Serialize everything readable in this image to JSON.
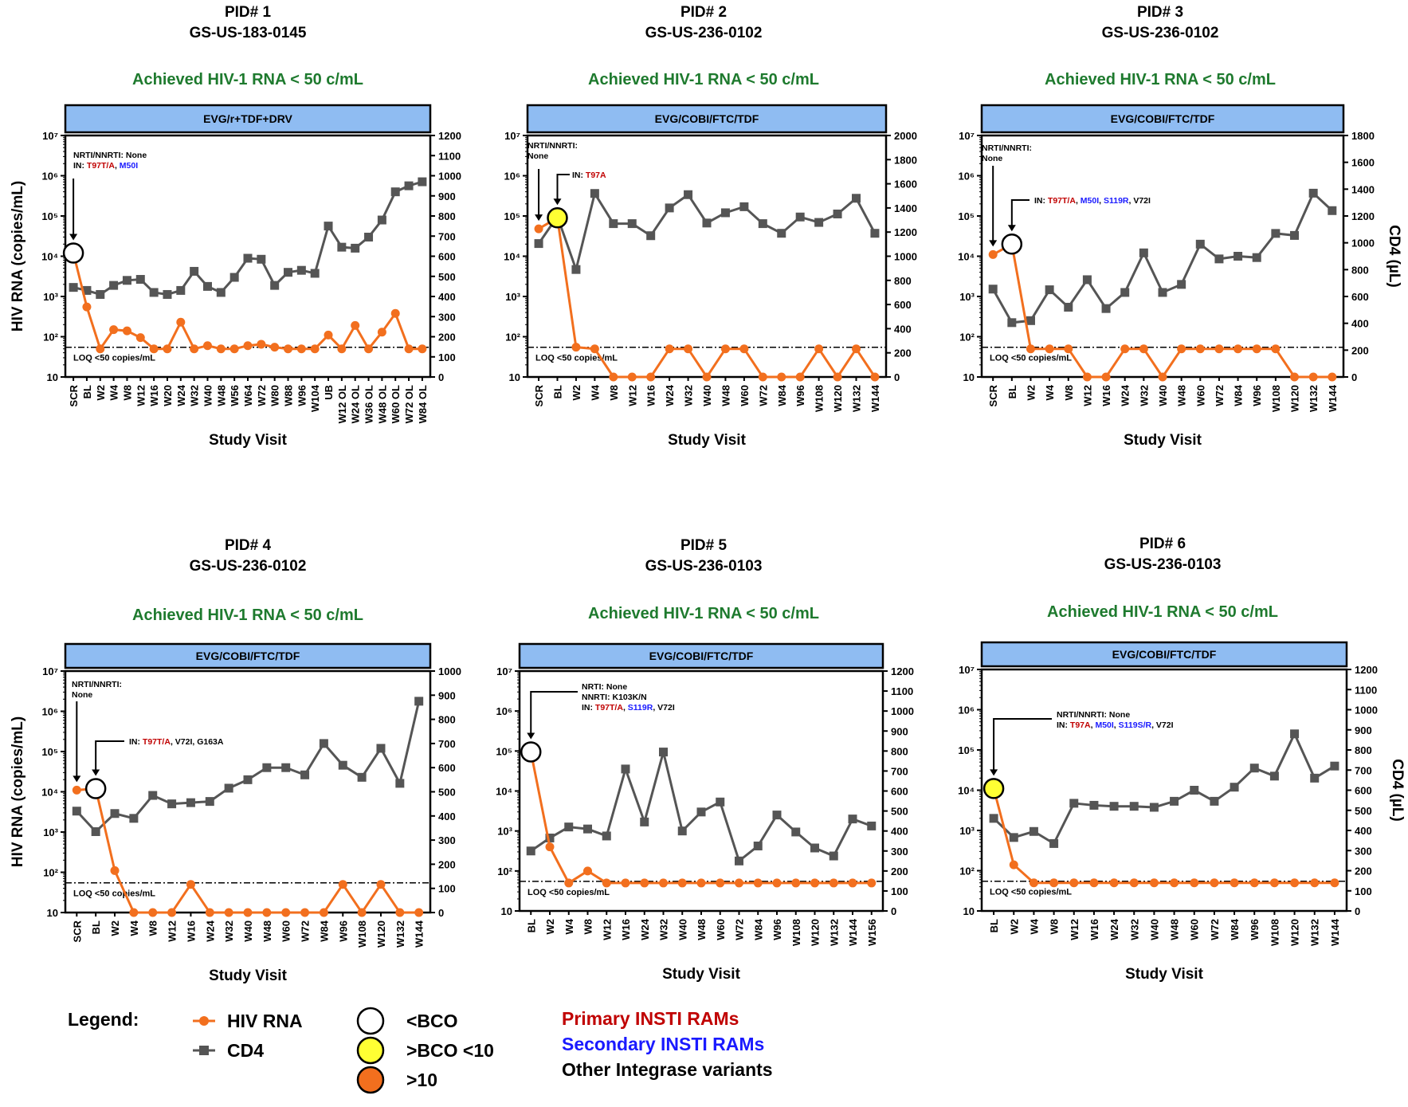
{
  "colors": {
    "hiv_rna": "#f26f1e",
    "cd4": "#555555",
    "achieved": "#1e7a2e",
    "header_fill": "#8fbcf2",
    "primary_ram": "#c00000",
    "secondary_ram": "#1a1aff",
    "other_variant": "#000000",
    "bco_low": "#ffffff",
    "bco_mid": "#ffff33",
    "bco_high": "#f26f1e"
  },
  "chart_data": [
    {
      "type": "line",
      "pid": "PID# 1",
      "study": "GS-US-183-0145",
      "status": "Achieved HIV-1 RNA < 50 c/mL",
      "regimen": "EVG/r+TDF+DRV",
      "ylabel_left": "HIV RNA (copies/mL)",
      "ylabel_right": "",
      "xlabel": "Study Visit",
      "loq_label": "LOQ <50 copies/mL",
      "yscale_left": "log",
      "ylim_left": [
        10,
        10000000
      ],
      "y_ticks_left": [
        "10",
        "10²",
        "10³",
        "10⁴",
        "10⁵",
        "10⁶",
        "10⁷"
      ],
      "ylim_right": [
        0,
        1200
      ],
      "y_ticks_right": [
        0,
        100,
        200,
        300,
        400,
        500,
        600,
        700,
        800,
        900,
        1000,
        1100,
        1200
      ],
      "categories": [
        "SCR",
        "BL",
        "W2",
        "W4",
        "W8",
        "W12",
        "W16",
        "W20",
        "W24",
        "W32",
        "W40",
        "W48",
        "W56",
        "W64",
        "W72",
        "W80",
        "W88",
        "W96",
        "W104",
        "UB",
        "W12 OL",
        "W24 OL",
        "W36 OL",
        "W48 OL",
        "W60 OL",
        "W72 OL",
        "W84 OL"
      ],
      "series": [
        {
          "name": "HIV RNA",
          "values": [
            12000,
            550,
            50,
            150,
            140,
            95,
            50,
            50,
            230,
            50,
            60,
            50,
            50,
            60,
            65,
            55,
            50,
            50,
            50,
            110,
            50,
            190,
            50,
            130,
            380,
            50,
            50
          ]
        },
        {
          "name": "CD4",
          "values": [
            445,
            430,
            410,
            455,
            480,
            485,
            420,
            410,
            430,
            525,
            450,
            420,
            495,
            590,
            585,
            455,
            520,
            530,
            515,
            750,
            645,
            640,
            695,
            780,
            920,
            950,
            970
          ]
        }
      ],
      "annotations": [
        {
          "category": "SCR",
          "marker": "<BCO",
          "value": 12000,
          "segments": [
            [
              {
                "text": "NRTI/NNRTI: None",
                "kind": "other"
              }
            ],
            [
              {
                "text": "IN: ",
                "kind": "other"
              },
              {
                "text": "T97T/A",
                "kind": "primary"
              },
              {
                "text": ", ",
                "kind": "other"
              },
              {
                "text": "M50I",
                "kind": "secondary"
              }
            ]
          ]
        }
      ]
    },
    {
      "type": "line",
      "pid": "PID# 2",
      "study": "GS-US-236-0102",
      "status": "Achieved HIV-1 RNA < 50 c/mL",
      "regimen": "EVG/COBI/FTC/TDF",
      "ylabel_left": "",
      "ylabel_right": "",
      "xlabel": "Study Visit",
      "loq_label": "LOQ <50 copies/mL",
      "yscale_left": "log",
      "ylim_left": [
        10,
        10000000
      ],
      "y_ticks_left": [
        "10",
        "10²",
        "10³",
        "10⁴",
        "10⁵",
        "10⁶",
        "10⁷"
      ],
      "ylim_right": [
        0,
        2000
      ],
      "y_ticks_right": [
        0,
        200,
        400,
        600,
        800,
        1000,
        1200,
        1400,
        1600,
        1800,
        2000
      ],
      "categories": [
        "SCR",
        "BL",
        "W2",
        "W4",
        "W8",
        "W12",
        "W16",
        "W24",
        "W32",
        "W40",
        "W48",
        "W60",
        "W72",
        "W84",
        "W96",
        "W108",
        "W120",
        "W132",
        "W144"
      ],
      "series": [
        {
          "name": "HIV RNA",
          "values": [
            48000,
            90000,
            55,
            50,
            10,
            10,
            10,
            50,
            50,
            10,
            50,
            50,
            10,
            10,
            10,
            50,
            10,
            50,
            10
          ]
        },
        {
          "name": "CD4",
          "values": [
            1105,
            1330,
            890,
            1520,
            1270,
            1270,
            1170,
            1400,
            1510,
            1275,
            1360,
            1410,
            1270,
            1190,
            1325,
            1280,
            1350,
            1480,
            1190
          ]
        }
      ],
      "annotations": [
        {
          "category": "SCR",
          "marker": "",
          "value": 48000,
          "segments": [
            [
              {
                "text": "NRTI/NNRTI:",
                "kind": "other"
              }
            ],
            [
              {
                "text": "None",
                "kind": "other"
              }
            ]
          ]
        },
        {
          "category": "BL",
          "marker": ">BCO <10",
          "value": 90000,
          "segments": [
            [
              {
                "text": "IN: ",
                "kind": "other"
              },
              {
                "text": "T97A",
                "kind": "primary"
              }
            ]
          ]
        }
      ]
    },
    {
      "type": "line",
      "pid": "PID# 3",
      "study": "GS-US-236-0102",
      "status": "Achieved HIV-1 RNA < 50 c/mL",
      "regimen": "EVG/COBI/FTC/TDF",
      "ylabel_left": "",
      "ylabel_right": "CD4 (µL)",
      "xlabel": "Study Visit",
      "loq_label": "LOQ <50 copies/mL",
      "yscale_left": "log",
      "ylim_left": [
        10,
        10000000
      ],
      "y_ticks_left": [
        "10",
        "10²",
        "10³",
        "10⁴",
        "10⁵",
        "10⁶",
        "10⁷"
      ],
      "ylim_right": [
        0,
        1800
      ],
      "y_ticks_right": [
        0,
        200,
        400,
        600,
        800,
        1000,
        1200,
        1400,
        1600,
        1800
      ],
      "categories": [
        "SCR",
        "BL",
        "W2",
        "W4",
        "W8",
        "W12",
        "W16",
        "W24",
        "W32",
        "W40",
        "W48",
        "W60",
        "W72",
        "W84",
        "W96",
        "W108",
        "W120",
        "W132",
        "W144"
      ],
      "series": [
        {
          "name": "HIV RNA",
          "values": [
            11000,
            20000,
            50,
            50,
            50,
            10,
            10,
            50,
            50,
            10,
            50,
            50,
            50,
            50,
            50,
            50,
            10,
            10,
            10
          ]
        },
        {
          "name": "CD4",
          "values": [
            655,
            405,
            420,
            650,
            520,
            725,
            510,
            630,
            925,
            630,
            690,
            990,
            880,
            900,
            890,
            1070,
            1055,
            1370,
            1240
          ]
        }
      ],
      "annotations": [
        {
          "category": "SCR",
          "marker": "",
          "value": 11000,
          "segments": [
            [
              {
                "text": "NRTI/NNRTI:",
                "kind": "other"
              }
            ],
            [
              {
                "text": "None",
                "kind": "other"
              }
            ]
          ]
        },
        {
          "category": "BL",
          "marker": "<BCO",
          "value": 20000,
          "segments": [
            [
              {
                "text": "IN: ",
                "kind": "other"
              },
              {
                "text": "T97T/A",
                "kind": "primary"
              },
              {
                "text": ", ",
                "kind": "other"
              },
              {
                "text": "M50I",
                "kind": "secondary"
              },
              {
                "text": ", ",
                "kind": "other"
              },
              {
                "text": "S119R",
                "kind": "secondary"
              },
              {
                "text": ", V72I",
                "kind": "other"
              }
            ]
          ]
        }
      ]
    },
    {
      "type": "line",
      "pid": "PID# 4",
      "study": "GS-US-236-0102",
      "status": "Achieved HIV-1 RNA < 50 c/mL",
      "regimen": "EVG/COBI/FTC/TDF",
      "ylabel_left": "HIV RNA (copies/mL)",
      "ylabel_right": "",
      "xlabel": "Study Visit",
      "loq_label": "LOQ <50 copies/mL",
      "yscale_left": "log",
      "ylim_left": [
        10,
        10000000
      ],
      "y_ticks_left": [
        "10",
        "10²",
        "10³",
        "10⁴",
        "10⁵",
        "10⁶",
        "10⁷"
      ],
      "ylim_right": [
        0,
        1000
      ],
      "y_ticks_right": [
        0,
        100,
        200,
        300,
        400,
        500,
        600,
        700,
        800,
        900,
        1000
      ],
      "categories": [
        "SCR",
        "BL",
        "W2",
        "W4",
        "W8",
        "W12",
        "W16",
        "W24",
        "W32",
        "W40",
        "W48",
        "W60",
        "W72",
        "W84",
        "W96",
        "W108",
        "W120",
        "W132",
        "W144"
      ],
      "series": [
        {
          "name": "HIV RNA",
          "values": [
            11000,
            12000,
            110,
            10,
            10,
            10,
            50,
            10,
            10,
            10,
            10,
            10,
            10,
            10,
            50,
            10,
            50,
            10,
            10
          ]
        },
        {
          "name": "CD4",
          "values": [
            420,
            335,
            410,
            390,
            485,
            450,
            455,
            460,
            515,
            550,
            600,
            600,
            570,
            700,
            610,
            560,
            680,
            535,
            875
          ]
        }
      ],
      "annotations": [
        {
          "category": "SCR",
          "marker": "",
          "value": 11000,
          "segments": [
            [
              {
                "text": "NRTI/NNRTI:",
                "kind": "other"
              }
            ],
            [
              {
                "text": "None",
                "kind": "other"
              }
            ]
          ]
        },
        {
          "category": "BL",
          "marker": "<BCO",
          "value": 12000,
          "segments": [
            [
              {
                "text": "IN: ",
                "kind": "other"
              },
              {
                "text": "T97T/A",
                "kind": "primary"
              },
              {
                "text": ", V72I, G163A",
                "kind": "other"
              }
            ]
          ]
        }
      ]
    },
    {
      "type": "line",
      "pid": "PID# 5",
      "study": "GS-US-236-0103",
      "status": "Achieved HIV-1 RNA < 50 c/mL",
      "regimen": "EVG/COBI/FTC/TDF",
      "ylabel_left": "",
      "ylabel_right": "",
      "xlabel": "Study Visit",
      "loq_label": "LOQ <50 copies/mL",
      "yscale_left": "log",
      "ylim_left": [
        10,
        10000000
      ],
      "y_ticks_left": [
        "10",
        "10²",
        "10³",
        "10⁴",
        "10⁵",
        "10⁶",
        "10⁷"
      ],
      "ylim_right": [
        0,
        1200
      ],
      "y_ticks_right": [
        0,
        100,
        200,
        300,
        400,
        500,
        600,
        700,
        800,
        900,
        1000,
        1100,
        1200
      ],
      "categories": [
        "BL",
        "W2",
        "W4",
        "W8",
        "W12",
        "W16",
        "W24",
        "W32",
        "W40",
        "W48",
        "W60",
        "W72",
        "W84",
        "W96",
        "W108",
        "W120",
        "W132",
        "W144",
        "W156"
      ],
      "series": [
        {
          "name": "HIV RNA",
          "values": [
            95000,
            400,
            50,
            100,
            50,
            50,
            50,
            50,
            50,
            50,
            50,
            50,
            50,
            50,
            50,
            50,
            50,
            50,
            50
          ]
        },
        {
          "name": "CD4",
          "values": [
            300,
            365,
            420,
            410,
            375,
            710,
            445,
            795,
            400,
            495,
            545,
            250,
            325,
            480,
            395,
            315,
            275,
            460,
            425
          ]
        }
      ],
      "annotations": [
        {
          "category": "BL",
          "marker": "<BCO",
          "value": 95000,
          "segments": [
            [
              {
                "text": "NRTI:  None",
                "kind": "other"
              }
            ],
            [
              {
                "text": "NNRTI: K103K/N",
                "kind": "other"
              }
            ],
            [
              {
                "text": "IN: ",
                "kind": "other"
              },
              {
                "text": "T97T/A",
                "kind": "primary"
              },
              {
                "text": ", ",
                "kind": "other"
              },
              {
                "text": "S119R",
                "kind": "secondary"
              },
              {
                "text": ", V72I",
                "kind": "other"
              }
            ]
          ]
        }
      ]
    },
    {
      "type": "line",
      "pid": "PID# 6",
      "study": "GS-US-236-0103",
      "status": "Achieved HIV-1 RNA < 50 c/mL",
      "regimen": "EVG/COBI/FTC/TDF",
      "ylabel_left": "",
      "ylabel_right": "CD4 (µL)",
      "xlabel": "Study Visit",
      "loq_label": "LOQ <50 copies/mL",
      "yscale_left": "log",
      "ylim_left": [
        10,
        10000000
      ],
      "y_ticks_left": [
        "10",
        "10²",
        "10³",
        "10⁴",
        "10⁵",
        "10⁶",
        "10⁷"
      ],
      "ylim_right": [
        0,
        1200
      ],
      "y_ticks_right": [
        0,
        100,
        200,
        300,
        400,
        500,
        600,
        700,
        800,
        900,
        1000,
        1100,
        1200
      ],
      "categories": [
        "BL",
        "W2",
        "W4",
        "W8",
        "W12",
        "W16",
        "W24",
        "W32",
        "W40",
        "W48",
        "W60",
        "W72",
        "W84",
        "W96",
        "W108",
        "W120",
        "W132",
        "W144"
      ],
      "series": [
        {
          "name": "HIV RNA",
          "values": [
            11000,
            140,
            50,
            50,
            50,
            50,
            50,
            50,
            50,
            50,
            50,
            50,
            50,
            50,
            50,
            50,
            50,
            50
          ]
        },
        {
          "name": "CD4",
          "values": [
            460,
            365,
            395,
            335,
            535,
            525,
            520,
            520,
            515,
            545,
            600,
            545,
            615,
            710,
            670,
            880,
            660,
            720
          ]
        }
      ],
      "annotations": [
        {
          "category": "BL",
          "marker": ">BCO <10",
          "value": 11000,
          "segments": [
            [
              {
                "text": "NRTI/NNRTI: None",
                "kind": "other"
              }
            ],
            [
              {
                "text": "IN: ",
                "kind": "other"
              },
              {
                "text": "T97A",
                "kind": "primary"
              },
              {
                "text": ", ",
                "kind": "other"
              },
              {
                "text": "M50I",
                "kind": "secondary"
              },
              {
                "text": ", ",
                "kind": "other"
              },
              {
                "text": "S119S/R",
                "kind": "secondary"
              },
              {
                "text": ", V72I",
                "kind": "other"
              }
            ]
          ]
        }
      ]
    }
  ],
  "legend": {
    "title": "Legend:",
    "series_items": [
      {
        "label": "HIV RNA",
        "icon": "orange-circle-line-icon"
      },
      {
        "label": "CD4",
        "icon": "gray-square-line-icon"
      }
    ],
    "bco_items": [
      {
        "label": "<BCO",
        "fill": "#ffffff"
      },
      {
        "label": ">BCO <10",
        "fill": "#ffff33"
      },
      {
        "label": ">10",
        "fill": "#f26f1e"
      }
    ],
    "ram_items": [
      {
        "label": "Primary INSTI RAMs",
        "kind": "primary"
      },
      {
        "label": "Secondary INSTI RAMs",
        "kind": "secondary"
      },
      {
        "label": "Other Integrase variants",
        "kind": "other"
      }
    ]
  }
}
